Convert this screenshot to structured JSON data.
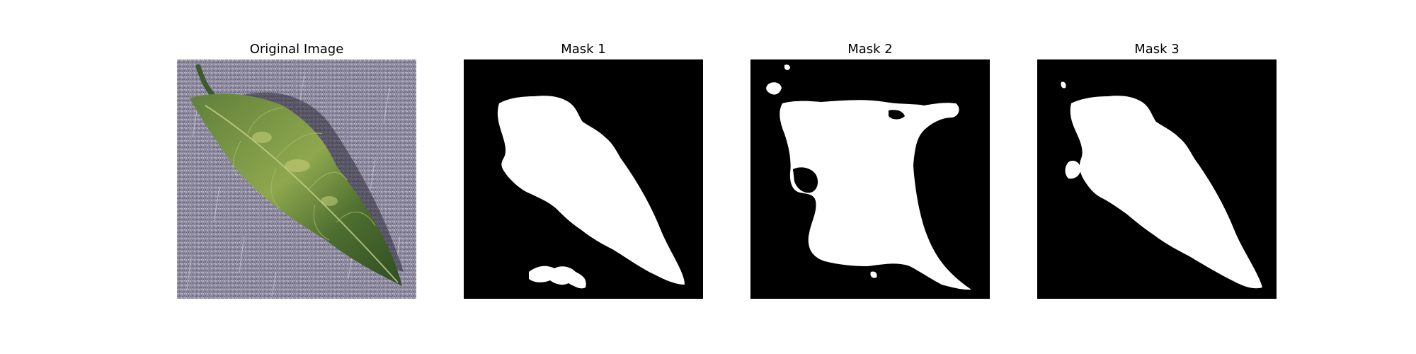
{
  "figure": {
    "panels": [
      {
        "title": "Original Image",
        "content": "leaf-photo"
      },
      {
        "title": "Mask 1",
        "content": "binary-mask"
      },
      {
        "title": "Mask 2",
        "content": "binary-mask"
      },
      {
        "title": "Mask 3",
        "content": "binary-mask"
      }
    ]
  },
  "colors": {
    "background": "#ffffff",
    "mask_background": "#000000",
    "mask_foreground": "#ffffff",
    "photo_background": "#8e8ba0",
    "leaf_dark": "#3b5a2a",
    "leaf_light": "#8fa84e"
  }
}
